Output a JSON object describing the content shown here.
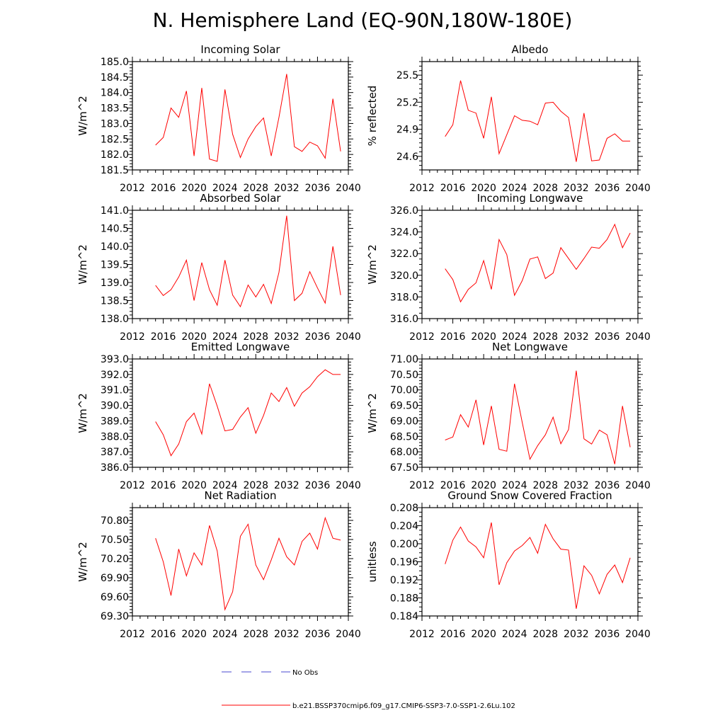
{
  "title": "N. Hemisphere Land (EQ-90N,180W-180E)",
  "legend": [
    {
      "label": "No Obs",
      "style": "dashed",
      "color": "#4a4ad0"
    },
    {
      "label": "b.e21.BSSP370cmip6.f09_g17.CMIP6-SSP3-7.0-SSP1-2.6Lu.102",
      "style": "solid",
      "color": "#ff0000"
    }
  ],
  "chart_data": [
    {
      "type": "line",
      "title": "Incoming Solar",
      "ylabel": "W/m^2",
      "xlim": [
        2012,
        2040
      ],
      "xticks": [
        "2012",
        "2016",
        "2020",
        "2024",
        "2028",
        "2032",
        "2036",
        "2040"
      ],
      "ylim": [
        181.5,
        185.0
      ],
      "yticks": [
        "181.5",
        "182.0",
        "182.5",
        "183.0",
        "183.5",
        "184.0",
        "184.5",
        "185.0"
      ],
      "series": [
        {
          "color": "#ff0000",
          "x": [
            2015,
            2016,
            2017,
            2018,
            2019,
            2020,
            2021,
            2022,
            2023,
            2024,
            2025,
            2026,
            2027,
            2028,
            2029,
            2030,
            2031,
            2032,
            2033,
            2034,
            2035,
            2036,
            2037,
            2038,
            2039
          ],
          "y": [
            182.3,
            182.55,
            183.5,
            183.2,
            184.05,
            181.95,
            184.15,
            181.85,
            181.78,
            184.1,
            182.65,
            181.9,
            182.5,
            182.9,
            183.18,
            181.95,
            183.2,
            184.6,
            182.25,
            182.1,
            182.4,
            182.28,
            181.88,
            183.8,
            182.1
          ]
        }
      ]
    },
    {
      "type": "line",
      "title": "Albedo",
      "ylabel": "% reflected",
      "xlim": [
        2012,
        2040
      ],
      "xticks": [
        "2012",
        "2016",
        "2020",
        "2024",
        "2028",
        "2032",
        "2036",
        "2040"
      ],
      "ylim": [
        24.45,
        25.65
      ],
      "yticks": [
        "24.6",
        "24.9",
        "25.2",
        "25.5"
      ],
      "ytick_values": [
        24.6,
        24.9,
        25.2,
        25.5
      ],
      "series": [
        {
          "color": "#ff0000",
          "x": [
            2015,
            2016,
            2017,
            2018,
            2019,
            2020,
            2021,
            2022,
            2023,
            2024,
            2025,
            2026,
            2027,
            2028,
            2029,
            2030,
            2031,
            2032,
            2033,
            2034,
            2035,
            2036,
            2037,
            2038,
            2039
          ],
          "y": [
            24.82,
            24.95,
            25.44,
            25.11,
            25.08,
            24.8,
            25.26,
            24.63,
            24.84,
            25.05,
            25.0,
            24.99,
            24.95,
            25.19,
            25.2,
            25.1,
            25.03,
            24.54,
            25.08,
            24.55,
            24.56,
            24.8,
            24.85,
            24.77,
            24.77
          ]
        }
      ]
    },
    {
      "type": "line",
      "title": "Absorbed Solar",
      "ylabel": "W/m^2",
      "xlim": [
        2012,
        2040
      ],
      "xticks": [
        "2012",
        "2016",
        "2020",
        "2024",
        "2028",
        "2032",
        "2036",
        "2040"
      ],
      "ylim": [
        138.0,
        141.0
      ],
      "yticks": [
        "138.0",
        "138.5",
        "139.0",
        "139.5",
        "140.0",
        "140.5",
        "141.0"
      ],
      "series": [
        {
          "color": "#ff0000",
          "x": [
            2015,
            2016,
            2017,
            2018,
            2019,
            2020,
            2021,
            2022,
            2023,
            2024,
            2025,
            2026,
            2027,
            2028,
            2029,
            2030,
            2031,
            2032,
            2033,
            2034,
            2035,
            2036,
            2037,
            2038,
            2039
          ],
          "y": [
            138.92,
            138.64,
            138.8,
            139.15,
            139.62,
            138.5,
            139.55,
            138.8,
            138.37,
            139.62,
            138.65,
            138.33,
            138.93,
            138.6,
            138.95,
            138.42,
            139.28,
            140.85,
            138.5,
            138.7,
            139.3,
            138.85,
            138.43,
            140.0,
            138.65
          ]
        }
      ]
    },
    {
      "type": "line",
      "title": "Incoming Longwave",
      "ylabel": "W/m^2",
      "xlim": [
        2012,
        2040
      ],
      "xticks": [
        "2012",
        "2016",
        "2020",
        "2024",
        "2028",
        "2032",
        "2036",
        "2040"
      ],
      "ylim": [
        316.0,
        326.0
      ],
      "yticks": [
        "316.0",
        "318.0",
        "320.0",
        "322.0",
        "324.0",
        "326.0"
      ],
      "series": [
        {
          "color": "#ff0000",
          "x": [
            2015,
            2016,
            2017,
            2018,
            2019,
            2020,
            2021,
            2022,
            2023,
            2024,
            2025,
            2026,
            2027,
            2028,
            2029,
            2030,
            2031,
            2032,
            2033,
            2034,
            2035,
            2036,
            2037,
            2038,
            2039
          ],
          "y": [
            320.6,
            319.6,
            317.55,
            318.7,
            319.3,
            321.35,
            318.7,
            323.3,
            321.9,
            318.15,
            319.5,
            321.5,
            321.7,
            319.7,
            320.2,
            322.55,
            321.55,
            320.55,
            321.55,
            322.6,
            322.5,
            323.3,
            324.7,
            322.55,
            323.9
          ]
        }
      ]
    },
    {
      "type": "line",
      "title": "Emitted Longwave",
      "ylabel": "W/m^2",
      "xlim": [
        2012,
        2040
      ],
      "xticks": [
        "2012",
        "2016",
        "2020",
        "2024",
        "2028",
        "2032",
        "2036",
        "2040"
      ],
      "ylim": [
        386.0,
        393.0
      ],
      "yticks": [
        "386.0",
        "387.0",
        "388.0",
        "389.0",
        "390.0",
        "391.0",
        "392.0",
        "393.0"
      ],
      "series": [
        {
          "color": "#ff0000",
          "x": [
            2015,
            2016,
            2017,
            2018,
            2019,
            2020,
            2021,
            2022,
            2023,
            2024,
            2025,
            2026,
            2027,
            2028,
            2029,
            2030,
            2031,
            2032,
            2033,
            2034,
            2035,
            2036,
            2037,
            2038,
            2039
          ],
          "y": [
            388.95,
            388.1,
            386.75,
            387.5,
            388.95,
            389.5,
            388.15,
            391.4,
            389.95,
            388.35,
            388.45,
            389.25,
            389.85,
            388.2,
            389.35,
            390.8,
            390.25,
            391.15,
            389.95,
            390.8,
            391.2,
            391.85,
            392.3,
            392.0,
            392.0
          ]
        }
      ]
    },
    {
      "type": "line",
      "title": "Net Longwave",
      "ylabel": "W/m^2",
      "xlim": [
        2012,
        2040
      ],
      "xticks": [
        "2012",
        "2016",
        "2020",
        "2024",
        "2028",
        "2032",
        "2036",
        "2040"
      ],
      "ylim": [
        67.5,
        71.0
      ],
      "yticks": [
        "67.50",
        "68.00",
        "68.50",
        "69.00",
        "69.50",
        "70.00",
        "70.50",
        "71.00"
      ],
      "series": [
        {
          "color": "#ff0000",
          "x": [
            2015,
            2016,
            2017,
            2018,
            2019,
            2020,
            2021,
            2022,
            2023,
            2024,
            2025,
            2026,
            2027,
            2028,
            2029,
            2030,
            2031,
            2032,
            2033,
            2034,
            2035,
            2036,
            2037,
            2038,
            2039
          ],
          "y": [
            68.38,
            68.48,
            69.2,
            68.8,
            69.68,
            68.22,
            69.48,
            68.08,
            68.02,
            70.2,
            68.95,
            67.76,
            68.2,
            68.55,
            69.12,
            68.26,
            68.72,
            70.62,
            68.42,
            68.25,
            68.7,
            68.55,
            67.6,
            69.48,
            68.15
          ]
        }
      ]
    },
    {
      "type": "line",
      "title": "Net Radiation",
      "ylabel": "W/m^2",
      "xlim": [
        2012,
        2040
      ],
      "xticks": [
        "2012",
        "2016",
        "2020",
        "2024",
        "2028",
        "2032",
        "2036",
        "2040"
      ],
      "ylim": [
        69.3,
        71.0
      ],
      "yticks": [
        "69.30",
        "69.60",
        "69.90",
        "70.20",
        "70.50",
        "70.80"
      ],
      "ytick_values": [
        69.3,
        69.6,
        69.9,
        70.2,
        70.5,
        70.8
      ],
      "series": [
        {
          "color": "#ff0000",
          "x": [
            2015,
            2016,
            2017,
            2018,
            2019,
            2020,
            2021,
            2022,
            2023,
            2024,
            2025,
            2026,
            2027,
            2028,
            2029,
            2030,
            2031,
            2032,
            2033,
            2034,
            2035,
            2036,
            2037,
            2038,
            2039
          ],
          "y": [
            70.52,
            70.15,
            69.62,
            70.35,
            69.93,
            70.29,
            70.1,
            70.72,
            70.32,
            69.4,
            69.68,
            70.55,
            70.74,
            70.1,
            69.87,
            70.18,
            70.52,
            70.23,
            70.1,
            70.47,
            70.6,
            70.35,
            70.84,
            70.52,
            70.49
          ]
        }
      ]
    },
    {
      "type": "line",
      "title": "Ground Snow Covered Fraction",
      "ylabel": "unitless",
      "xlim": [
        2012,
        2040
      ],
      "xticks": [
        "2012",
        "2016",
        "2020",
        "2024",
        "2028",
        "2032",
        "2036",
        "2040"
      ],
      "ylim": [
        0.184,
        0.208
      ],
      "yticks": [
        "0.184",
        "0.188",
        "0.192",
        "0.196",
        "0.200",
        "0.204",
        "0.208"
      ],
      "series": [
        {
          "color": "#ff0000",
          "x": [
            2015,
            2016,
            2017,
            2018,
            2019,
            2020,
            2021,
            2022,
            2023,
            2024,
            2025,
            2026,
            2027,
            2028,
            2029,
            2030,
            2031,
            2032,
            2033,
            2034,
            2035,
            2036,
            2037,
            2038,
            2039
          ],
          "y": [
            0.1955,
            0.2008,
            0.2037,
            0.2006,
            0.1993,
            0.1969,
            0.2047,
            0.1909,
            0.1958,
            0.1984,
            0.1996,
            0.2014,
            0.1979,
            0.2043,
            0.2011,
            0.1988,
            0.1986,
            0.1856,
            0.1951,
            0.193,
            0.1889,
            0.1932,
            0.1953,
            0.1914,
            0.1969
          ]
        }
      ]
    }
  ]
}
